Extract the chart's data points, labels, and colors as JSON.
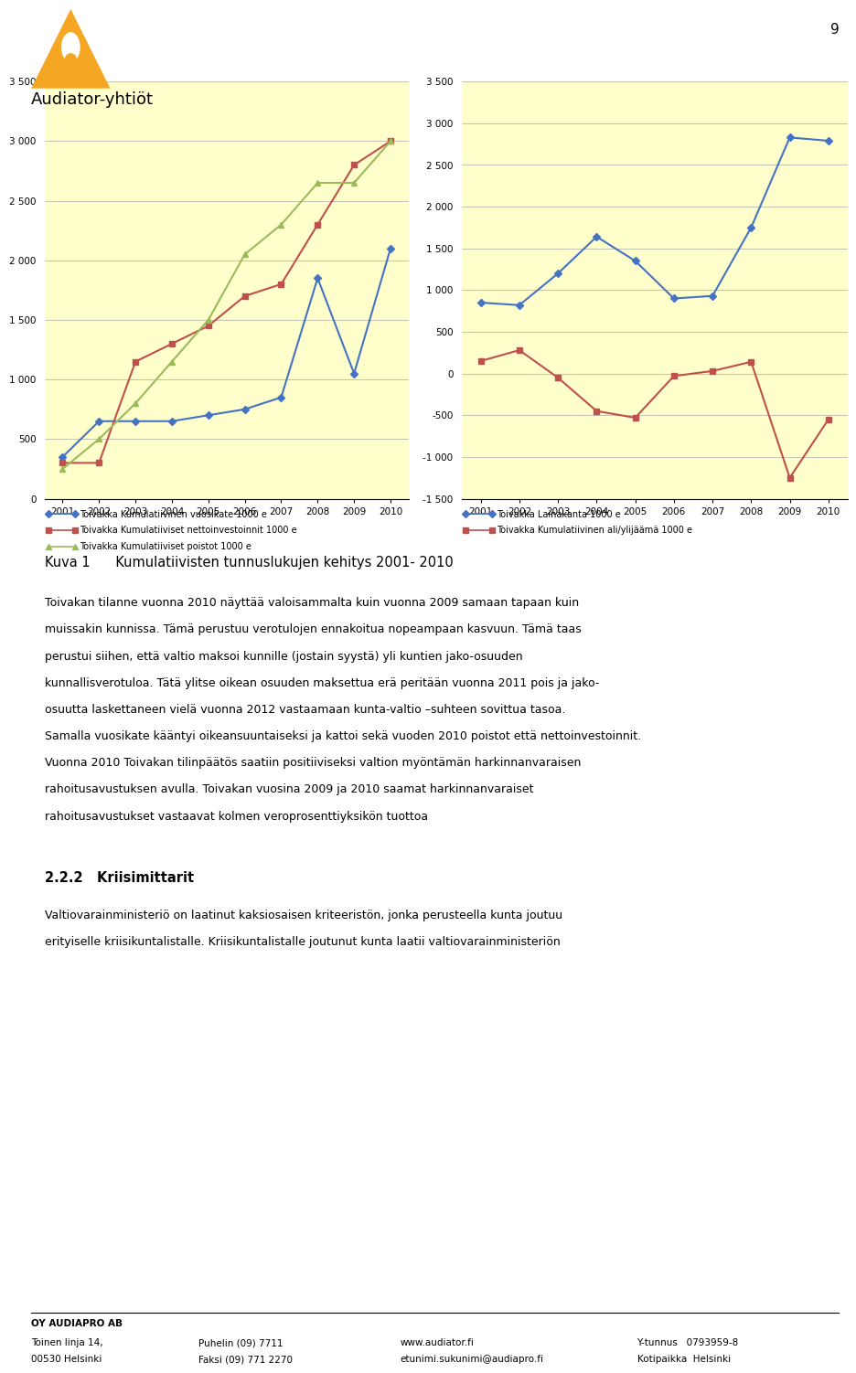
{
  "years": [
    2001,
    2002,
    2003,
    2004,
    2005,
    2006,
    2007,
    2008,
    2009,
    2010
  ],
  "chart1": {
    "vuosikate": [
      350,
      650,
      650,
      650,
      700,
      750,
      850,
      1850,
      1050,
      2100
    ],
    "nettoinvestoinnit": [
      300,
      300,
      1150,
      1300,
      1450,
      1700,
      1800,
      2300,
      2800,
      3000
    ],
    "poistot": [
      250,
      500,
      800,
      1150,
      1500,
      2050,
      2300,
      2650,
      2650,
      3000
    ],
    "ylim": [
      0,
      3500
    ],
    "yticks": [
      0,
      500,
      1000,
      1500,
      2000,
      2500,
      3000,
      3500
    ],
    "ytick_labels": [
      "0",
      "500",
      "1 000",
      "1 500",
      "2 000",
      "2 500",
      "3 000",
      "3 500"
    ],
    "legend": [
      "Toivakka Kumulatiivinen vuosikate 1000 e",
      "Toivakka Kumulatiiviset nettoinvestoinnit 1000 e",
      "Toivakka Kumulatiiviset poistot 1000 e"
    ]
  },
  "chart2": {
    "lainakanta": [
      850,
      820,
      1200,
      1640,
      1350,
      900,
      930,
      1750,
      2830,
      2790
    ],
    "ali_ylijaaama": [
      150,
      280,
      -50,
      -450,
      -530,
      -30,
      30,
      140,
      -1250,
      -550
    ],
    "ylim": [
      -1500,
      3500
    ],
    "yticks": [
      -1500,
      -1000,
      -500,
      0,
      500,
      1000,
      1500,
      2000,
      2500,
      3000,
      3500
    ],
    "ytick_labels": [
      "-1 500",
      "-1 000",
      "-500",
      "0",
      "500",
      "1 000",
      "1 500",
      "2 000",
      "2 500",
      "3 000",
      "3 500"
    ],
    "legend": [
      "Toivakka Lainakanta 1000 e",
      "Toivakka Kumulatiivinen ali/ylijäämä 1000 e"
    ]
  },
  "chart_bg": "#ffffcc",
  "page_bg": "#ffffff",
  "line_colors": {
    "blue": "#4472c4",
    "red": "#c0504d",
    "green": "#9bbb59"
  },
  "logo_color": "#F5A623",
  "title_text": "Kuva 1      Kumulatiivisten tunnuslukujen kehitys 2001- 2010",
  "body_texts": [
    "Toivakan tilanne vuonna 2010 näyttää valoisammalta kuin vuonna 2009 samaan tapaan kuin",
    "muissakin kunnissa. Tämä perustuu verotulojen ennakoitua nopeampaan kasvuun. Tämä taas",
    "perustui siihen, että valtio maksoi kunnille (jostain syystä) yli kuntien jako-osuuden",
    "kunnallisverotuloa. Tätä ylitse oikean osuuden maksettua erä peritään vuonna 2011 pois ja jako-",
    "osuutta laskettaneen vielä vuonna 2012 vastaamaan kunta-valtio –suhteen sovittua tasoa.",
    "Samalla vuosikate kääntyi oikeansuuntaiseksi ja kattoi sekä vuoden 2010 poistot että nettoinvestoinnit.",
    "Vuonna 2010 Toivakan tilinpäätös saatiin positiiviseksi valtion myöntämän harkinnanvaraisen",
    "rahoitusavustuksen avulla. Toivakan vuosina 2009 ja 2010 saamat harkinnanvaraiset",
    "rahoitusavustukset vastaavat kolmen veroprosenttiyksikön tuottoa"
  ],
  "section_title": "2.2.2   Kriisimittarit",
  "section_body": [
    "Valtiovarainministeriö on laatinut kaksiosaisen kriteeristön, jonka perusteella kunta joutuu",
    "erityiselle kriisikuntalistalle. Kriisikuntalistalle joutunut kunta laatii valtiovarainministeriön"
  ],
  "footer_left1": "OY AUDIAPRO AB",
  "footer_left2": "Toinen linja 14,",
  "footer_left3": "00530 Helsinki",
  "footer_mid1": "Puhelin (09) 7711",
  "footer_mid2": "Faksi (09) 771 2270",
  "footer_right1": "www.audiator.fi",
  "footer_right2": "etunimi.sukunimi@audiapro.fi",
  "footer_far1": "Y-tunnus   0793959-8",
  "footer_far2": "Kotipaikka  Helsinki",
  "page_number": "9"
}
